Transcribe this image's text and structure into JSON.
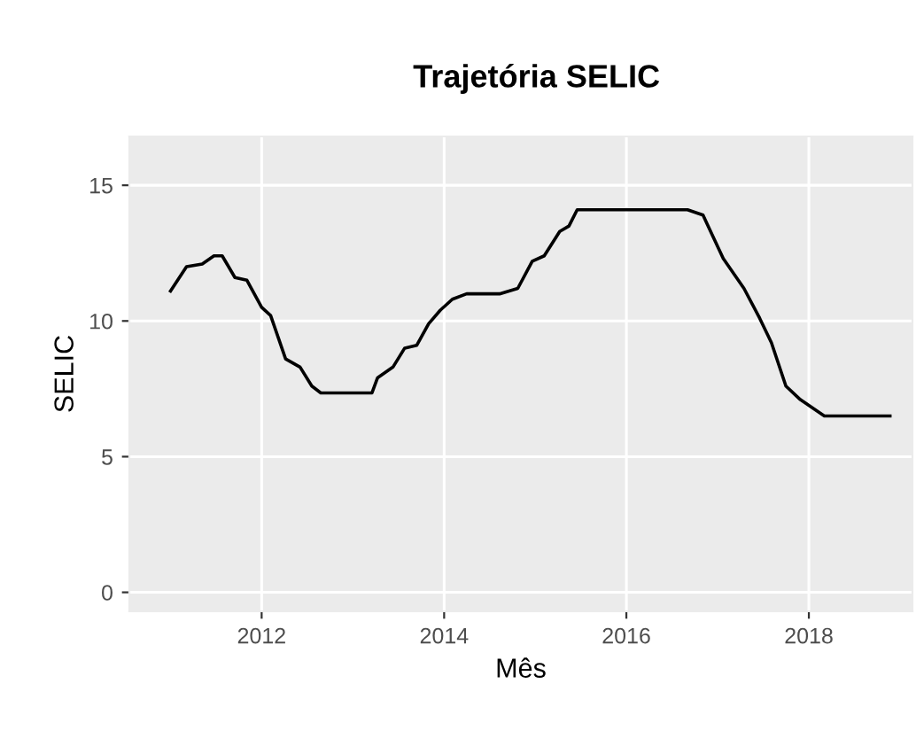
{
  "chart_data": {
    "type": "line",
    "title": "Trajetória SELIC",
    "xlabel": "Mês",
    "ylabel": "SELIC",
    "x": [
      "2011-01-01",
      "2011-03-06",
      "2011-05-08",
      "2011-06-24",
      "2011-07-27",
      "2011-09-16",
      "2011-11-03",
      "2012-01-01",
      "2012-02-06",
      "2012-04-06",
      "2012-06-03",
      "2012-07-20",
      "2012-08-25",
      "2013-03-18",
      "2013-04-09",
      "2013-06-10",
      "2013-07-27",
      "2013-09-13",
      "2013-10-31",
      "2013-12-17",
      "2014-02-03",
      "2014-04-01",
      "2014-08-11",
      "2014-10-23",
      "2014-12-20",
      "2015-02-06",
      "2015-04-09",
      "2015-05-16",
      "2015-06-18",
      "2016-09-02",
      "2016-11-03",
      "2017-01-23",
      "2017-04-16",
      "2017-06-18",
      "2017-08-04",
      "2017-10-01",
      "2017-11-28",
      "2018-03-04",
      "2018-11-22"
    ],
    "series": [
      {
        "color": "#000000",
        "values": [
          11.1,
          12.0,
          12.1,
          12.4,
          12.4,
          11.6,
          11.5,
          10.5,
          10.2,
          8.6,
          8.3,
          7.6,
          7.35,
          7.35,
          7.9,
          8.3,
          9.0,
          9.1,
          9.9,
          10.4,
          10.8,
          11.0,
          11.0,
          11.2,
          12.2,
          12.4,
          13.3,
          13.5,
          14.1,
          14.1,
          13.9,
          12.3,
          11.2,
          10.1,
          9.2,
          7.6,
          7.1,
          6.5,
          6.5
        ]
      }
    ],
    "xlim": [
      "2010-07-20",
      "2019-02-20"
    ],
    "ylim": [
      -0.7,
      16.8
    ],
    "xticks": [
      {
        "value": "2012-01-01",
        "label": "2012"
      },
      {
        "value": "2014-01-01",
        "label": "2014"
      },
      {
        "value": "2016-01-01",
        "label": "2016"
      },
      {
        "value": "2018-01-01",
        "label": "2018"
      }
    ],
    "yticks": [
      0,
      5,
      10,
      15
    ],
    "grid": true,
    "legend": false,
    "marker": "none",
    "line_style": "solid"
  }
}
